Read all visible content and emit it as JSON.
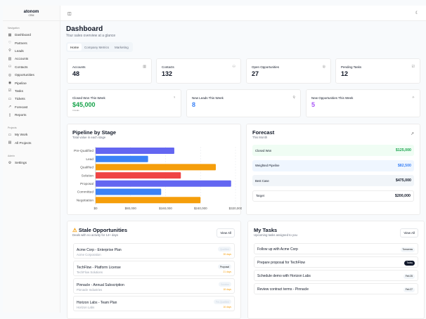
{
  "app": {
    "name": "atonom",
    "sub": "CRM"
  },
  "sidebar": {
    "sections": [
      {
        "label": "Navigation",
        "items": [
          {
            "label": "Dashboard",
            "icon": "grid-icon"
          },
          {
            "label": "Partners",
            "icon": "handshake-icon"
          },
          {
            "label": "Leads",
            "icon": "user-plus-icon"
          },
          {
            "label": "Accounts",
            "icon": "building-icon"
          },
          {
            "label": "Contacts",
            "icon": "users-icon"
          },
          {
            "label": "Opportunities",
            "icon": "target-icon"
          },
          {
            "label": "Pipeline",
            "icon": "pipeline-icon"
          },
          {
            "label": "Tasks",
            "icon": "checkbox-icon"
          },
          {
            "label": "Tickets",
            "icon": "ticket-icon"
          },
          {
            "label": "Forecast",
            "icon": "trending-icon"
          },
          {
            "label": "Reports",
            "icon": "file-icon"
          }
        ]
      },
      {
        "label": "Projects",
        "items": [
          {
            "label": "My Work",
            "icon": "briefcase-icon"
          },
          {
            "label": "All Projects",
            "icon": "folder-icon"
          }
        ]
      },
      {
        "label": "Admin",
        "items": [
          {
            "label": "Settings",
            "icon": "gear-icon"
          }
        ]
      }
    ]
  },
  "header": {
    "title": "Dashboard",
    "subtitle": "Your sales overview at a glance"
  },
  "tabs": [
    {
      "label": "Home",
      "active": true
    },
    {
      "label": "Company Metrics"
    },
    {
      "label": "Marketing"
    }
  ],
  "stats": [
    {
      "label": "Accounts",
      "value": "48",
      "icon": "building-icon"
    },
    {
      "label": "Contacts",
      "value": "132",
      "icon": "users-icon"
    },
    {
      "label": "Open Opportunities",
      "value": "27",
      "icon": "target-icon"
    },
    {
      "label": "Pending Tasks",
      "value": "12",
      "icon": "checkbox-icon"
    }
  ],
  "weekly": [
    {
      "label": "Closed Won This Week",
      "value": "$45,000",
      "detail": "3 deals",
      "color": "#16a34a",
      "icon": "trophy-icon"
    },
    {
      "label": "New Leads This Week",
      "value": "8",
      "color": "#3b82f6",
      "icon": "user-plus-icon"
    },
    {
      "label": "New Opportunities This Week",
      "value": "5",
      "color": "#a855f7",
      "icon": "sparkle-icon"
    }
  ],
  "pipeline": {
    "title": "Pipeline by Stage",
    "subtitle": "Total value in each stage"
  },
  "chart_data": {
    "type": "bar",
    "orientation": "horizontal",
    "categories": [
      "Pre-Qualified",
      "Lead",
      "Qualified",
      "Solution",
      "Proposal",
      "Committed",
      "Negotiation"
    ],
    "values": [
      180000,
      120000,
      275000,
      195000,
      310000,
      150000,
      240000
    ],
    "colors": [
      "#6366f1",
      "#3b82f6",
      "#f59e0b",
      "#ef4444",
      "#6366f1",
      "#3b82f6",
      "#f59e0b"
    ],
    "xlim": [
      0,
      320000
    ],
    "xticks": [
      "$0",
      "$80,000",
      "$160,000",
      "$240,000",
      "$320,000"
    ],
    "tickvals": [
      0,
      80000,
      160000,
      240000,
      320000
    ],
    "grid": true
  },
  "forecast": {
    "title": "Forecast",
    "subtitle": "This Month",
    "rows": [
      {
        "label": "Closed Won",
        "value": "$125,000",
        "bg": "#f0fdf4",
        "color": "#16a34a"
      },
      {
        "label": "Weighted Pipeline",
        "value": "$82,500",
        "bg": "#eff6ff",
        "color": "#3b82f6"
      },
      {
        "label": "Best Case",
        "value": "$475,000",
        "bg": "#f1f5f9",
        "color": "#111827"
      },
      {
        "label": "Target",
        "value": "$200,000",
        "bg": "#ffffff",
        "color": "#111827"
      }
    ]
  },
  "stale": {
    "title": "Stale Opportunities",
    "subtitle": "Deals with no activity for 14+ days",
    "view_all": "View All",
    "items": [
      {
        "name": "Acme Corp - Enterprise Plan",
        "company": "Acme Corporation",
        "stage": "Qualified",
        "days": "28 days"
      },
      {
        "name": "TechFlow - Platform License",
        "company": "TechFlow Solutions",
        "stage": "Proposal",
        "days": "21 days"
      },
      {
        "name": "Pinnacle - Annual Subscription",
        "company": "Pinnacle Industries",
        "stage": "Solution",
        "days": "18 days"
      },
      {
        "name": "Horizon Labs - Team Plan",
        "company": "Horizon Labs",
        "stage": "Pre-Qualified",
        "days": "16 days"
      }
    ]
  },
  "tasks": {
    "title": "My Tasks",
    "subtitle": "Upcoming tasks assigned to you",
    "view_all": "View All",
    "items": [
      {
        "title": "Follow up with Acme Corp",
        "due": "Tomorrow"
      },
      {
        "title": "Prepare proposal for TechFlow",
        "due": "Today"
      },
      {
        "title": "Schedule demo with Horizon Labs",
        "due": "Feb 25"
      },
      {
        "title": "Review contract terms - Pinnacle",
        "due": "Feb 27"
      }
    ]
  }
}
